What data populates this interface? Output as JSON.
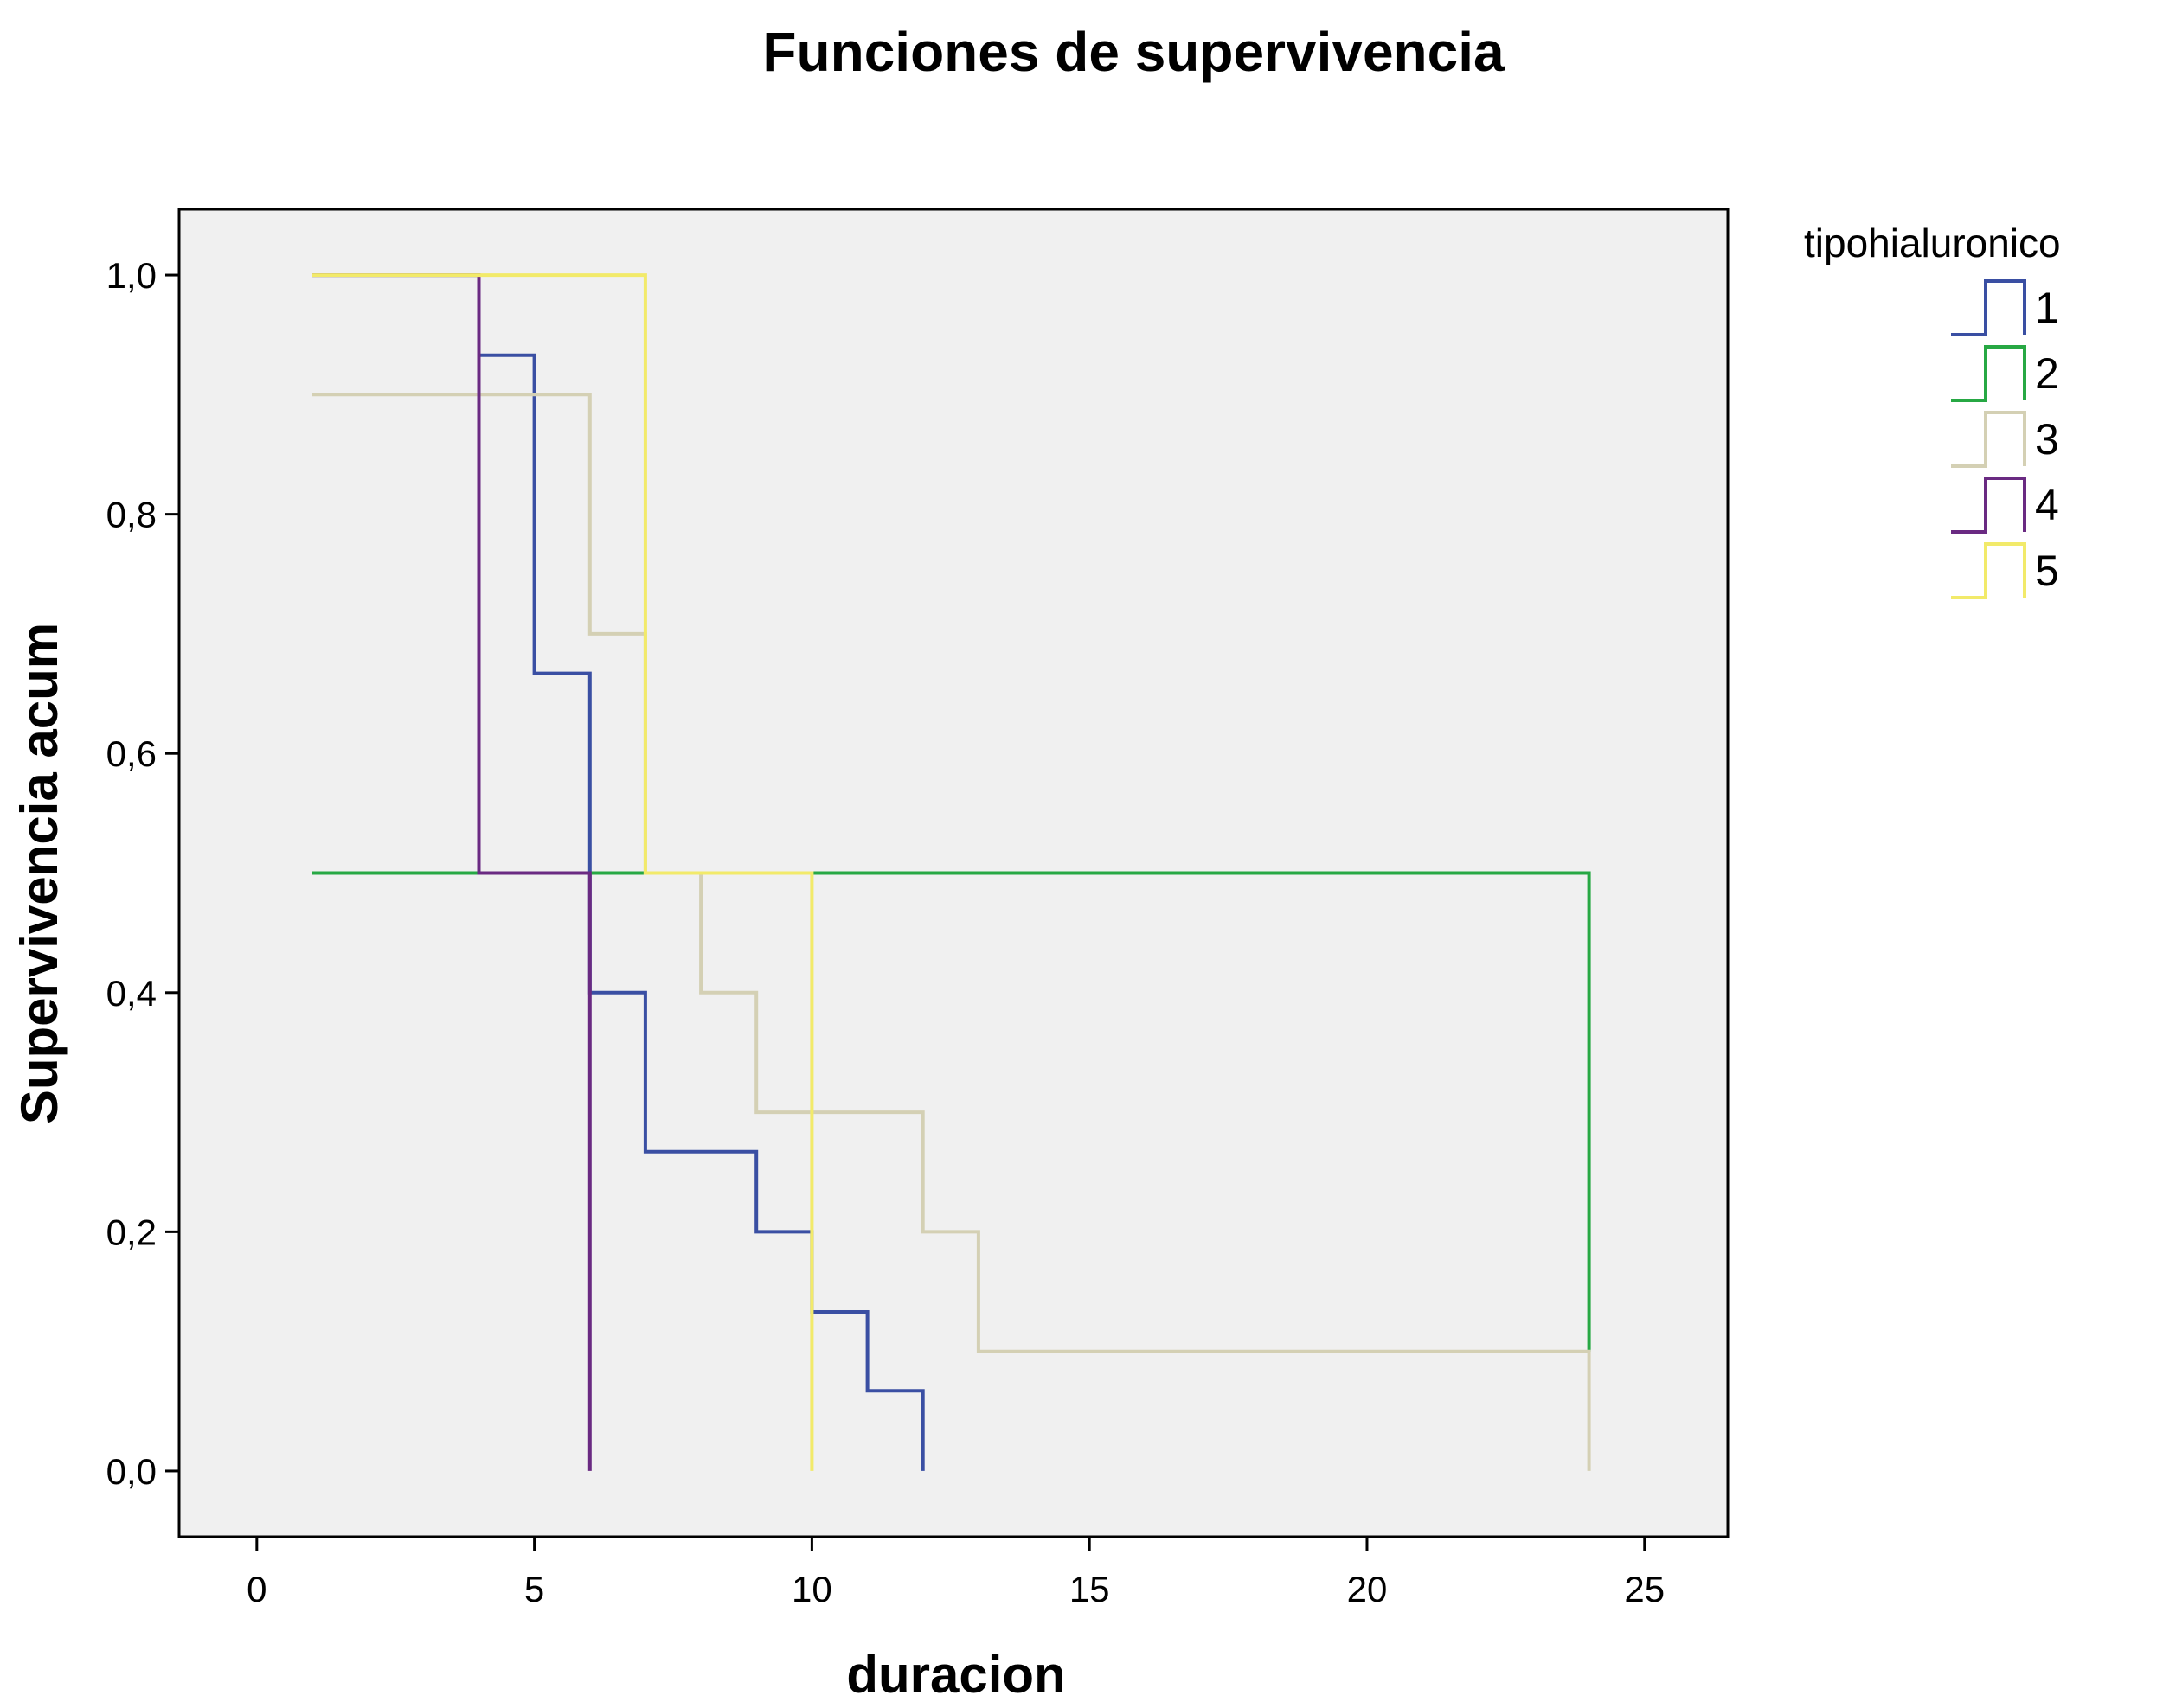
{
  "chart_data": {
    "type": "line",
    "title": "Funciones de supervivencia",
    "xlabel": "duracion",
    "ylabel": "Supervivencia acum",
    "xlim": [
      -1.4,
      26.5
    ],
    "ylim": [
      -0.055,
      1.055
    ],
    "x_ticks": [
      0,
      5,
      10,
      15,
      20,
      25
    ],
    "x_tick_labels": [
      "0",
      "5",
      "10",
      "15",
      "20",
      "25"
    ],
    "y_ticks": [
      0,
      0.2,
      0.4,
      0.6,
      0.8,
      1.0
    ],
    "y_tick_labels": [
      "0,0",
      "0,2",
      "0,4",
      "0,6",
      "0,8",
      "1,0"
    ],
    "grid": false,
    "plot_background": "#f0f0f0",
    "legend_placement": "right-top",
    "legend_title": "tipohialuronico",
    "series": [
      {
        "name": "1",
        "color": "#3a4fa3",
        "points": [
          [
            1,
            1.0
          ],
          [
            4,
            1.0
          ],
          [
            4,
            0.933
          ],
          [
            5,
            0.933
          ],
          [
            5,
            0.667
          ],
          [
            6,
            0.667
          ],
          [
            6,
            0.4
          ],
          [
            7,
            0.4
          ],
          [
            7,
            0.267
          ],
          [
            9,
            0.267
          ],
          [
            9,
            0.2
          ],
          [
            10,
            0.2
          ],
          [
            10,
            0.133
          ],
          [
            11,
            0.133
          ],
          [
            11,
            0.067
          ],
          [
            12,
            0.067
          ],
          [
            12,
            0.0
          ]
        ]
      },
      {
        "name": "2",
        "color": "#27a844",
        "points": [
          [
            1,
            0.5
          ],
          [
            24,
            0.5
          ],
          [
            24,
            0.1
          ]
        ]
      },
      {
        "name": "3",
        "color": "#d4d0b4",
        "points": [
          [
            1,
            0.9
          ],
          [
            6,
            0.9
          ],
          [
            6,
            0.7
          ],
          [
            7,
            0.7
          ],
          [
            7,
            0.5
          ],
          [
            8,
            0.5
          ],
          [
            8,
            0.4
          ],
          [
            9,
            0.4
          ],
          [
            9,
            0.3
          ],
          [
            12,
            0.3
          ],
          [
            12,
            0.2
          ],
          [
            13,
            0.2
          ],
          [
            13,
            0.1
          ],
          [
            24,
            0.1
          ],
          [
            24,
            0.0
          ]
        ]
      },
      {
        "name": "4",
        "color": "#6a2a82",
        "points": [
          [
            1,
            1.0
          ],
          [
            4,
            1.0
          ],
          [
            4,
            0.5
          ],
          [
            6,
            0.5
          ],
          [
            6,
            0.0
          ]
        ]
      },
      {
        "name": "5",
        "color": "#f2ea6a",
        "points": [
          [
            1,
            1.0
          ],
          [
            7,
            1.0
          ],
          [
            7,
            0.5
          ],
          [
            10,
            0.5
          ],
          [
            10,
            0.0
          ]
        ]
      }
    ]
  }
}
